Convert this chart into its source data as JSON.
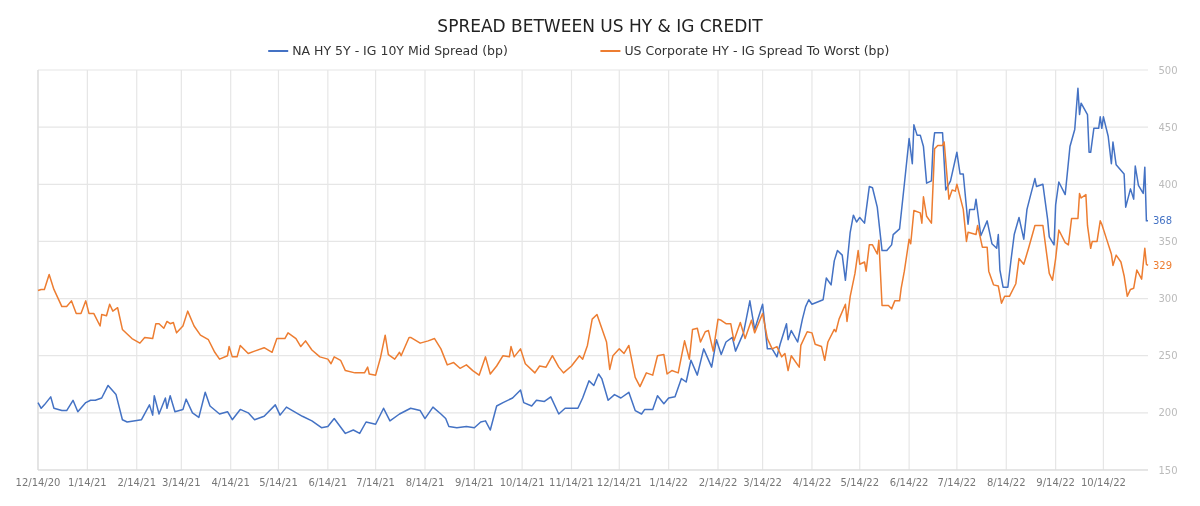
{
  "chart_data": {
    "type": "line",
    "title": "SPREAD BETWEEN US HY & IG CREDIT",
    "legend": "top",
    "grid": true,
    "xlim": [
      "2020-12-14",
      "2022-11-11"
    ],
    "xticks": [
      {
        "value": "2020-12-14",
        "label": "12/14/20"
      },
      {
        "value": "2021-01-14",
        "label": "1/14/21"
      },
      {
        "value": "2021-02-14",
        "label": "2/14/21"
      },
      {
        "value": "2021-03-14",
        "label": "3/14/21"
      },
      {
        "value": "2021-04-14",
        "label": "4/14/21"
      },
      {
        "value": "2021-05-14",
        "label": "5/14/21"
      },
      {
        "value": "2021-06-14",
        "label": "6/14/21"
      },
      {
        "value": "2021-07-14",
        "label": "7/14/21"
      },
      {
        "value": "2021-08-14",
        "label": "8/14/21"
      },
      {
        "value": "2021-09-14",
        "label": "9/14/21"
      },
      {
        "value": "2021-10-14",
        "label": "10/14/21"
      },
      {
        "value": "2021-11-14",
        "label": "11/14/21"
      },
      {
        "value": "2021-12-14",
        "label": "12/14/21"
      },
      {
        "value": "2022-01-14",
        "label": "1/14/22"
      },
      {
        "value": "2022-02-14",
        "label": "2/14/22"
      },
      {
        "value": "2022-03-14",
        "label": "3/14/22"
      },
      {
        "value": "2022-04-14",
        "label": "4/14/22"
      },
      {
        "value": "2022-05-14",
        "label": "5/14/22"
      },
      {
        "value": "2022-06-14",
        "label": "6/14/22"
      },
      {
        "value": "2022-07-14",
        "label": "7/14/22"
      },
      {
        "value": "2022-08-14",
        "label": "8/14/22"
      },
      {
        "value": "2022-09-14",
        "label": "9/14/22"
      },
      {
        "value": "2022-10-14",
        "label": "10/14/22"
      }
    ],
    "ylim": [
      150,
      500
    ],
    "yticks": [
      150,
      200,
      250,
      300,
      350,
      400,
      450,
      500
    ],
    "annotations": [
      {
        "text": "368",
        "x": "2022-11-11",
        "y": 368
      },
      {
        "text": "329",
        "x": "2022-11-11",
        "y": 329
      }
    ],
    "series": [
      {
        "name": "NA HY 5Y - IG 10Y Mid Spread (bp)",
        "color": "#4472c4",
        "x": [
          "2020-12-14",
          "2020-12-16",
          "2020-12-18",
          "2020-12-22",
          "2020-12-24",
          "2020-12-29",
          "2021-01-01",
          "2021-01-05",
          "2021-01-08",
          "2021-01-13",
          "2021-01-16",
          "2021-01-19",
          "2021-01-23",
          "2021-01-27",
          "2021-02-01",
          "2021-02-05",
          "2021-02-08",
          "2021-02-17",
          "2021-02-22",
          "2021-02-24",
          "2021-02-25",
          "2021-02-28",
          "2021-03-04",
          "2021-03-05",
          "2021-03-07",
          "2021-03-10",
          "2021-03-15",
          "2021-03-17",
          "2021-03-21",
          "2021-03-25",
          "2021-03-29",
          "2021-04-01",
          "2021-04-07",
          "2021-04-12",
          "2021-04-15",
          "2021-04-20",
          "2021-04-25",
          "2021-04-29",
          "2021-05-05",
          "2021-05-12",
          "2021-05-15",
          "2021-05-19",
          "2021-05-29",
          "2021-06-04",
          "2021-06-10",
          "2021-06-14",
          "2021-06-18",
          "2021-06-25",
          "2021-06-30",
          "2021-07-04",
          "2021-07-08",
          "2021-07-14",
          "2021-07-19",
          "2021-07-23",
          "2021-07-29",
          "2021-08-05",
          "2021-08-11",
          "2021-08-14",
          "2021-08-19",
          "2021-08-24",
          "2021-08-27",
          "2021-08-29",
          "2021-09-03",
          "2021-09-09",
          "2021-09-14",
          "2021-09-18",
          "2021-09-21",
          "2021-09-24",
          "2021-09-28",
          "2021-10-02",
          "2021-10-08",
          "2021-10-13",
          "2021-10-15",
          "2021-10-20",
          "2021-10-23",
          "2021-10-28",
          "2021-11-01",
          "2021-11-06",
          "2021-11-10",
          "2021-11-18",
          "2021-11-21",
          "2021-11-25",
          "2021-11-28",
          "2021-12-01",
          "2021-12-03",
          "2021-12-07",
          "2021-12-11",
          "2021-12-15",
          "2021-12-20",
          "2021-12-24",
          "2021-12-28",
          "2021-12-30",
          "2022-01-04",
          "2022-01-07",
          "2022-01-11",
          "2022-01-14",
          "2022-01-18",
          "2022-01-22",
          "2022-01-25",
          "2022-01-28",
          "2022-02-01",
          "2022-02-05",
          "2022-02-10",
          "2022-02-13",
          "2022-02-16",
          "2022-02-19",
          "2022-02-23",
          "2022-02-25",
          "2022-03-02",
          "2022-03-06",
          "2022-03-09",
          "2022-03-14",
          "2022-03-17",
          "2022-03-20",
          "2022-03-23",
          "2022-03-25",
          "2022-03-29",
          "2022-03-30",
          "2022-04-01",
          "2022-04-05",
          "2022-04-08",
          "2022-04-10",
          "2022-04-12",
          "2022-04-14",
          "2022-04-21",
          "2022-04-23",
          "2022-04-26",
          "2022-04-28",
          "2022-04-30",
          "2022-05-03",
          "2022-05-05",
          "2022-05-08",
          "2022-05-10",
          "2022-05-12",
          "2022-05-14",
          "2022-05-17",
          "2022-05-20",
          "2022-05-22",
          "2022-05-25",
          "2022-05-28",
          "2022-05-31",
          "2022-06-03",
          "2022-06-04",
          "2022-06-08",
          "2022-06-11",
          "2022-06-14",
          "2022-06-16",
          "2022-06-17",
          "2022-06-19",
          "2022-06-21",
          "2022-06-23",
          "2022-06-25",
          "2022-06-28",
          "2022-06-29",
          "2022-06-30",
          "2022-07-05",
          "2022-07-07",
          "2022-07-10",
          "2022-07-14",
          "2022-07-16",
          "2022-07-18",
          "2022-07-21",
          "2022-07-22",
          "2022-07-25",
          "2022-07-26",
          "2022-07-29",
          "2022-08-02",
          "2022-08-05",
          "2022-08-08",
          "2022-08-09",
          "2022-08-10",
          "2022-08-12",
          "2022-08-15",
          "2022-08-17",
          "2022-08-19",
          "2022-08-22",
          "2022-08-25",
          "2022-08-27",
          "2022-08-29",
          "2022-09-01",
          "2022-09-02",
          "2022-09-06",
          "2022-09-09",
          "2022-09-10",
          "2022-09-13",
          "2022-09-14",
          "2022-09-16",
          "2022-09-20",
          "2022-09-23",
          "2022-09-26",
          "2022-09-28",
          "2022-09-29",
          "2022-09-30",
          "2022-10-04",
          "2022-10-05",
          "2022-10-06",
          "2022-10-08",
          "2022-10-11",
          "2022-10-12",
          "2022-10-13",
          "2022-10-14",
          "2022-10-17",
          "2022-10-19",
          "2022-10-20",
          "2022-10-22",
          "2022-10-27",
          "2022-10-28",
          "2022-10-31",
          "2022-11-02",
          "2022-11-03",
          "2022-11-05",
          "2022-11-08",
          "2022-11-09",
          "2022-11-10",
          "2022-11-11"
        ],
        "values": [
          209,
          204,
          207,
          214,
          204,
          202,
          202,
          211,
          201,
          209,
          211,
          211,
          213,
          224,
          216,
          194,
          192,
          194,
          207,
          198,
          215,
          199,
          213,
          204,
          215,
          201,
          203,
          212,
          200,
          196,
          218,
          206,
          199,
          201,
          194,
          203,
          200,
          194,
          197,
          207,
          198,
          205,
          197,
          193,
          187,
          188,
          195,
          182,
          185,
          182,
          192,
          190,
          204,
          193,
          199,
          204,
          202,
          195,
          205,
          199,
          195,
          188,
          187,
          188,
          187,
          192,
          193,
          185,
          206,
          209,
          213,
          220,
          209,
          206,
          211,
          210,
          214,
          199,
          204,
          204,
          213,
          228,
          224,
          234,
          230,
          211,
          216,
          213,
          218,
          202,
          199,
          203,
          203,
          215,
          208,
          213,
          214,
          230,
          227,
          246,
          233,
          256,
          240,
          264,
          251,
          262,
          266,
          254,
          270,
          298,
          273,
          295,
          256,
          256,
          249,
          260,
          278,
          264,
          272,
          262,
          282,
          293,
          299,
          295,
          299,
          318,
          312,
          333,
          342,
          338,
          316,
          358,
          373,
          367,
          371,
          366,
          398,
          397,
          380,
          342,
          342,
          347,
          356,
          361,
          400,
          440,
          418,
          452,
          443,
          443,
          433,
          401,
          403,
          433,
          445,
          445,
          395,
          403,
          428,
          409,
          409,
          365,
          378,
          378,
          387,
          355,
          368,
          348,
          344,
          356,
          325,
          310,
          310,
          334,
          356,
          371,
          352,
          378,
          389,
          405,
          398,
          400,
          369,
          354,
          347,
          382,
          402,
          391,
          433,
          448,
          484,
          461,
          471,
          461,
          428,
          428,
          449,
          449,
          459,
          449,
          459,
          442,
          418,
          437,
          417,
          409,
          380,
          396,
          387,
          416,
          399,
          392,
          415,
          368,
          368
        ]
      },
      {
        "name": "US Corporate HY - IG Spread To Worst (bp)",
        "color": "#ed7d31",
        "x": [
          "2020-12-14",
          "2020-12-16",
          "2020-12-18",
          "2020-12-21",
          "2020-12-24",
          "2020-12-29",
          "2021-01-01",
          "2021-01-04",
          "2021-01-07",
          "2021-01-10",
          "2021-01-13",
          "2021-01-15",
          "2021-01-18",
          "2021-01-22",
          "2021-01-23",
          "2021-01-26",
          "2021-01-28",
          "2021-01-30",
          "2021-02-02",
          "2021-02-05",
          "2021-02-08",
          "2021-02-11",
          "2021-02-16",
          "2021-02-19",
          "2021-02-24",
          "2021-02-26",
          "2021-02-28",
          "2021-03-03",
          "2021-03-05",
          "2021-03-07",
          "2021-03-09",
          "2021-03-11",
          "2021-03-15",
          "2021-03-18",
          "2021-03-22",
          "2021-03-26",
          "2021-03-31",
          "2021-04-04",
          "2021-04-07",
          "2021-04-12",
          "2021-04-13",
          "2021-04-15",
          "2021-04-18",
          "2021-04-20",
          "2021-04-25",
          "2021-04-29",
          "2021-05-05",
          "2021-05-10",
          "2021-05-13",
          "2021-05-18",
          "2021-05-20",
          "2021-05-25",
          "2021-05-28",
          "2021-05-31",
          "2021-06-04",
          "2021-06-09",
          "2021-06-14",
          "2021-06-16",
          "2021-06-18",
          "2021-06-22",
          "2021-06-25",
          "2021-07-01",
          "2021-07-07",
          "2021-07-09",
          "2021-07-10",
          "2021-07-14",
          "2021-07-17",
          "2021-07-20",
          "2021-07-22",
          "2021-07-26",
          "2021-07-29",
          "2021-07-30",
          "2021-08-04",
          "2021-08-05",
          "2021-08-11",
          "2021-08-16",
          "2021-08-20",
          "2021-08-24",
          "2021-08-28",
          "2021-09-01",
          "2021-09-05",
          "2021-09-09",
          "2021-09-13",
          "2021-09-17",
          "2021-09-21",
          "2021-09-24",
          "2021-09-28",
          "2021-10-02",
          "2021-10-06",
          "2021-10-07",
          "2021-10-09",
          "2021-10-13",
          "2021-10-16",
          "2021-10-22",
          "2021-10-25",
          "2021-10-29",
          "2021-11-02",
          "2021-11-06",
          "2021-11-09",
          "2021-11-14",
          "2021-11-19",
          "2021-11-21",
          "2021-11-24",
          "2021-11-27",
          "2021-11-30",
          "2021-12-03",
          "2021-12-06",
          "2021-12-08",
          "2021-12-10",
          "2021-12-14",
          "2021-12-17",
          "2021-12-20",
          "2021-12-24",
          "2021-12-27",
          "2021-12-31",
          "2022-01-04",
          "2022-01-07",
          "2022-01-11",
          "2022-01-13",
          "2022-01-16",
          "2022-01-20",
          "2022-01-24",
          "2022-01-27",
          "2022-01-29",
          "2022-02-01",
          "2022-02-03",
          "2022-02-06",
          "2022-02-08",
          "2022-02-11",
          "2022-02-14",
          "2022-02-16",
          "2022-02-19",
          "2022-02-22",
          "2022-02-24",
          "2022-02-28",
          "2022-03-03",
          "2022-03-07",
          "2022-03-09",
          "2022-03-14",
          "2022-03-17",
          "2022-03-20",
          "2022-03-23",
          "2022-03-26",
          "2022-03-28",
          "2022-03-30",
          "2022-04-01",
          "2022-04-06",
          "2022-04-07",
          "2022-04-11",
          "2022-04-14",
          "2022-04-16",
          "2022-04-20",
          "2022-04-22",
          "2022-04-24",
          "2022-04-28",
          "2022-04-29",
          "2022-05-01",
          "2022-05-05",
          "2022-05-06",
          "2022-05-08",
          "2022-05-11",
          "2022-05-13",
          "2022-05-14",
          "2022-05-17",
          "2022-05-18",
          "2022-05-20",
          "2022-05-22",
          "2022-05-25",
          "2022-05-26",
          "2022-05-28",
          "2022-06-01",
          "2022-06-03",
          "2022-06-05",
          "2022-06-08",
          "2022-06-09",
          "2022-06-11",
          "2022-06-14",
          "2022-06-15",
          "2022-06-17",
          "2022-06-21",
          "2022-06-22",
          "2022-06-23",
          "2022-06-25",
          "2022-06-28",
          "2022-06-30",
          "2022-07-02",
          "2022-07-05",
          "2022-07-06",
          "2022-07-09",
          "2022-07-11",
          "2022-07-13",
          "2022-07-14",
          "2022-07-18",
          "2022-07-20",
          "2022-07-21",
          "2022-07-26",
          "2022-07-27",
          "2022-07-30",
          "2022-08-02",
          "2022-08-03",
          "2022-08-06",
          "2022-08-09",
          "2022-08-11",
          "2022-08-13",
          "2022-08-16",
          "2022-08-20",
          "2022-08-22",
          "2022-08-25",
          "2022-08-28",
          "2022-09-01",
          "2022-09-06",
          "2022-09-10",
          "2022-09-12",
          "2022-09-14",
          "2022-09-16",
          "2022-09-20",
          "2022-09-22",
          "2022-09-24",
          "2022-09-28",
          "2022-09-29",
          "2022-09-30",
          "2022-10-03",
          "2022-10-04",
          "2022-10-06",
          "2022-10-07",
          "2022-10-10",
          "2022-10-12",
          "2022-10-13",
          "2022-10-16",
          "2022-10-19",
          "2022-10-20",
          "2022-10-22",
          "2022-10-25",
          "2022-10-27",
          "2022-10-29",
          "2022-10-31",
          "2022-11-02",
          "2022-11-04",
          "2022-11-07",
          "2022-11-09",
          "2022-11-10",
          "2022-11-11"
        ],
        "values": [
          307,
          308,
          308,
          321,
          308,
          293,
          293,
          298,
          287,
          287,
          298,
          287,
          287,
          276,
          286,
          285,
          295,
          289,
          292,
          273,
          269,
          265,
          261,
          266,
          265,
          278,
          278,
          274,
          280,
          278,
          279,
          270,
          276,
          289,
          276,
          268,
          264,
          253,
          247,
          250,
          258,
          249,
          249,
          259,
          252,
          254,
          257,
          253,
          265,
          265,
          270,
          265,
          258,
          263,
          255,
          249,
          247,
          243,
          249,
          246,
          237,
          235,
          235,
          240,
          234,
          233,
          248,
          268,
          251,
          247,
          253,
          250,
          266,
          266,
          261,
          263,
          265,
          256,
          242,
          244,
          239,
          242,
          237,
          233,
          249,
          234,
          241,
          250,
          249,
          258,
          249,
          256,
          243,
          235,
          241,
          240,
          250,
          240,
          235,
          241,
          250,
          247,
          259,
          282,
          286,
          274,
          262,
          238,
          250,
          256,
          252,
          259,
          231,
          223,
          235,
          233,
          250,
          251,
          234,
          237,
          235,
          263,
          247,
          273,
          274,
          262,
          271,
          272,
          254,
          282,
          281,
          278,
          278,
          263,
          279,
          265,
          281,
          270,
          287,
          265,
          256,
          258,
          249,
          252,
          237,
          250,
          240,
          259,
          271,
          270,
          260,
          258,
          246,
          262,
          273,
          271,
          282,
          295,
          280,
          302,
          322,
          342,
          330,
          332,
          324,
          347,
          347,
          339,
          351,
          294,
          294,
          291,
          298,
          298,
          309,
          324,
          352,
          348,
          377,
          375,
          366,
          389,
          372,
          366,
          431,
          434,
          434,
          437,
          387,
          395,
          394,
          400,
          378,
          350,
          358,
          356,
          364,
          345,
          345,
          324,
          312,
          311,
          296,
          302,
          302,
          313,
          335,
          330,
          344,
          364,
          364,
          322,
          316,
          335,
          360,
          349,
          347,
          370,
          370,
          392,
          388,
          391,
          364,
          344,
          350,
          350,
          368,
          365,
          352,
          339,
          329,
          338,
          332,
          320,
          302,
          308,
          309,
          325,
          317,
          344,
          330,
          329
        ]
      }
    ]
  }
}
